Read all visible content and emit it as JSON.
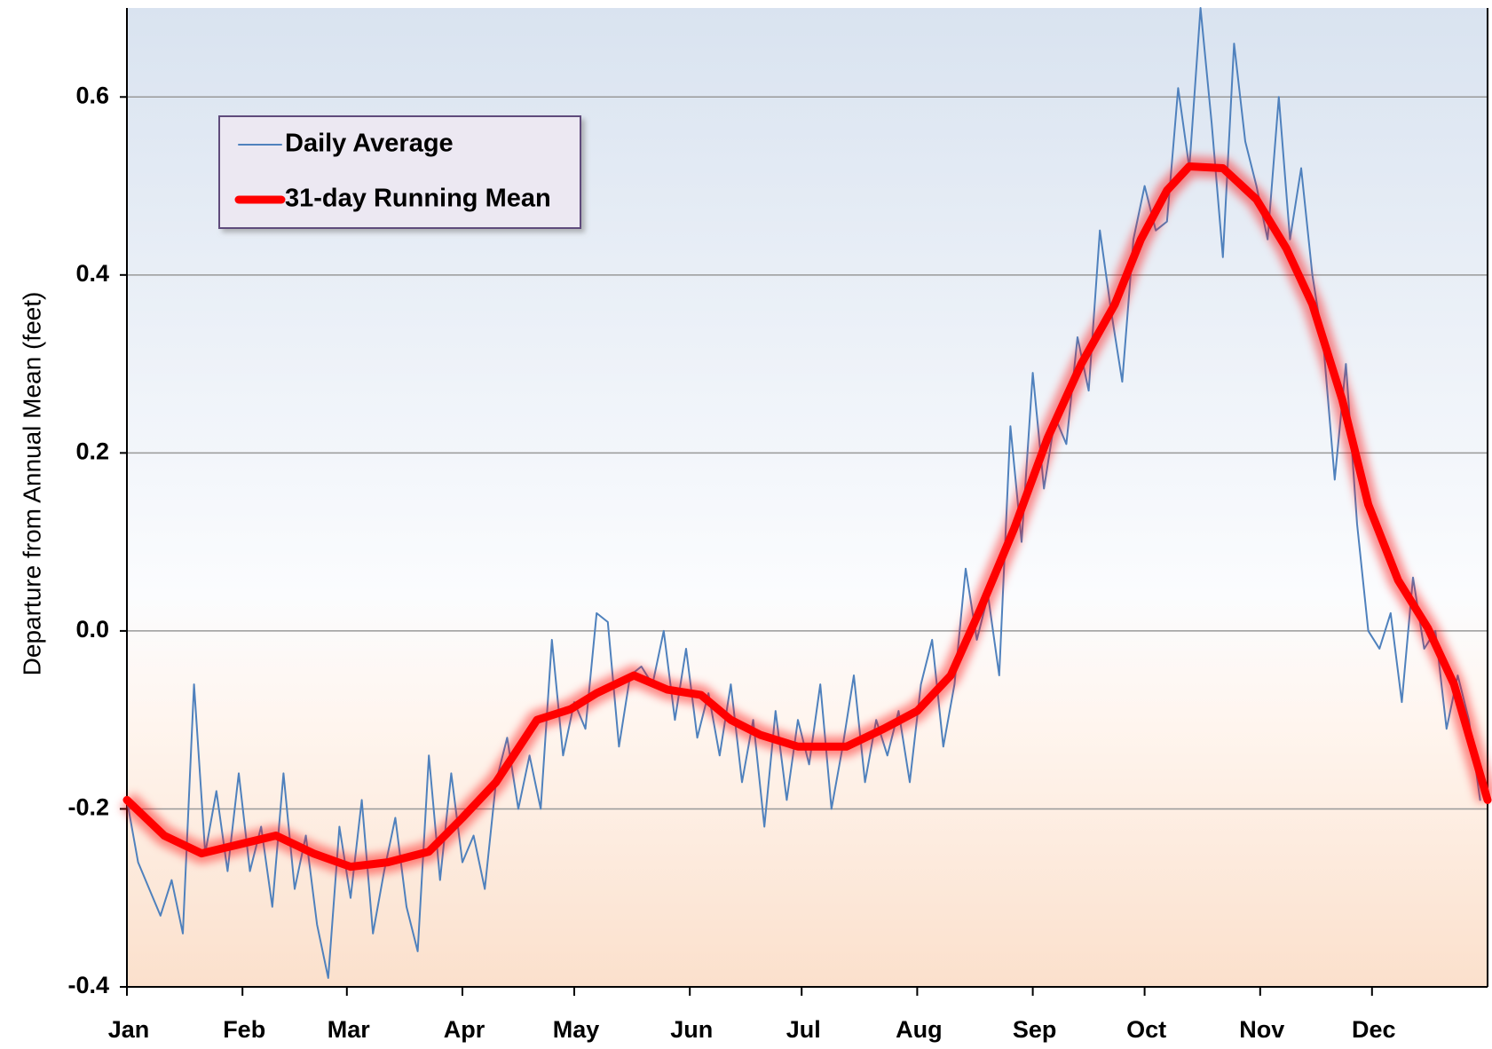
{
  "chart_data": {
    "type": "line",
    "y_label": "Departure  from Annual Mean (feet)",
    "xlim": [
      0,
      365
    ],
    "xticks": [
      {
        "value": 0,
        "label": "Jan"
      },
      {
        "value": 31,
        "label": "Feb"
      },
      {
        "value": 59,
        "label": "Mar"
      },
      {
        "value": 90,
        "label": "Apr"
      },
      {
        "value": 120,
        "label": "May"
      },
      {
        "value": 151,
        "label": "Jun"
      },
      {
        "value": 181,
        "label": "Jul"
      },
      {
        "value": 212,
        "label": "Aug"
      },
      {
        "value": 243,
        "label": "Sep"
      },
      {
        "value": 273,
        "label": "Oct"
      },
      {
        "value": 304,
        "label": "Nov"
      },
      {
        "value": 334,
        "label": "Dec"
      }
    ],
    "ylim": [
      -0.4,
      0.7
    ],
    "yticks": [
      -0.4,
      -0.2,
      {
        "value": 0,
        "label": "0.0"
      },
      0.2,
      0.4,
      0.6
    ],
    "grid": true,
    "legend": "upper left",
    "series": [
      {
        "name": "Daily Average",
        "color": "#4f81bd",
        "x": [
          0,
          3,
          6,
          9,
          12,
          15,
          18,
          21,
          24,
          27,
          30,
          33,
          36,
          39,
          42,
          45,
          48,
          51,
          54,
          57,
          60,
          63,
          66,
          69,
          72,
          75,
          78,
          81,
          84,
          87,
          90,
          93,
          96,
          99,
          102,
          105,
          108,
          111,
          114,
          117,
          120,
          123,
          126,
          129,
          132,
          135,
          138,
          141,
          144,
          147,
          150,
          153,
          156,
          159,
          162,
          165,
          168,
          171,
          174,
          177,
          180,
          183,
          186,
          189,
          192,
          195,
          198,
          201,
          204,
          207,
          210,
          213,
          216,
          219,
          222,
          225,
          228,
          231,
          234,
          237,
          240,
          243,
          246,
          249,
          252,
          255,
          258,
          261,
          264,
          267,
          270,
          273,
          276,
          279,
          282,
          285,
          288,
          291,
          294,
          297,
          300,
          303,
          306,
          309,
          312,
          315,
          318,
          321,
          324,
          327,
          330,
          333,
          336,
          339,
          342,
          345,
          348,
          351,
          354,
          357,
          360,
          363
        ],
        "values": [
          -0.19,
          -0.26,
          -0.29,
          -0.32,
          -0.28,
          -0.34,
          -0.06,
          -0.25,
          -0.18,
          -0.27,
          -0.16,
          -0.27,
          -0.22,
          -0.31,
          -0.16,
          -0.29,
          -0.23,
          -0.33,
          -0.39,
          -0.22,
          -0.3,
          -0.19,
          -0.34,
          -0.27,
          -0.21,
          -0.31,
          -0.36,
          -0.14,
          -0.28,
          -0.16,
          -0.26,
          -0.23,
          -0.29,
          -0.17,
          -0.12,
          -0.2,
          -0.14,
          -0.2,
          -0.01,
          -0.14,
          -0.08,
          -0.11,
          0.02,
          0.01,
          -0.13,
          -0.05,
          -0.04,
          -0.06,
          0.0,
          -0.1,
          -0.02,
          -0.12,
          -0.07,
          -0.14,
          -0.06,
          -0.17,
          -0.1,
          -0.22,
          -0.09,
          -0.19,
          -0.1,
          -0.15,
          -0.06,
          -0.2,
          -0.13,
          -0.05,
          -0.17,
          -0.1,
          -0.14,
          -0.09,
          -0.17,
          -0.06,
          -0.01,
          -0.13,
          -0.06,
          0.07,
          -0.01,
          0.04,
          -0.05,
          0.23,
          0.1,
          0.29,
          0.16,
          0.24,
          0.21,
          0.33,
          0.27,
          0.45,
          0.36,
          0.28,
          0.44,
          0.5,
          0.45,
          0.46,
          0.61,
          0.52,
          0.7,
          0.57,
          0.42,
          0.66,
          0.55,
          0.5,
          0.44,
          0.6,
          0.44,
          0.52,
          0.4,
          0.32,
          0.17,
          0.3,
          0.12,
          0.0,
          -0.02,
          0.02,
          -0.08,
          0.06,
          -0.02,
          0.0,
          -0.11,
          -0.05,
          -0.1,
          -0.19
        ]
      },
      {
        "name": "31-day Running Mean",
        "color": "#ff0000",
        "x": [
          0,
          10,
          20,
          30,
          40,
          50,
          60,
          70,
          81,
          90,
          99,
          110,
          119,
          126,
          136,
          145,
          154,
          162,
          170,
          180,
          193,
          203,
          212,
          221,
          229,
          238,
          247,
          256,
          265,
          272,
          279,
          285,
          294,
          303,
          311,
          318,
          326,
          333,
          341,
          349,
          356,
          365
        ],
        "values": [
          -0.19,
          -0.23,
          -0.25,
          -0.24,
          -0.23,
          -0.25,
          -0.265,
          -0.26,
          -0.248,
          -0.21,
          -0.17,
          -0.1,
          -0.088,
          -0.07,
          -0.05,
          -0.066,
          -0.072,
          -0.1,
          -0.117,
          -0.13,
          -0.13,
          -0.11,
          -0.09,
          -0.05,
          0.025,
          0.115,
          0.217,
          0.3,
          0.367,
          0.44,
          0.495,
          0.522,
          0.52,
          0.485,
          0.43,
          0.367,
          0.26,
          0.142,
          0.057,
          0.003,
          -0.06,
          -0.19
        ]
      }
    ]
  }
}
